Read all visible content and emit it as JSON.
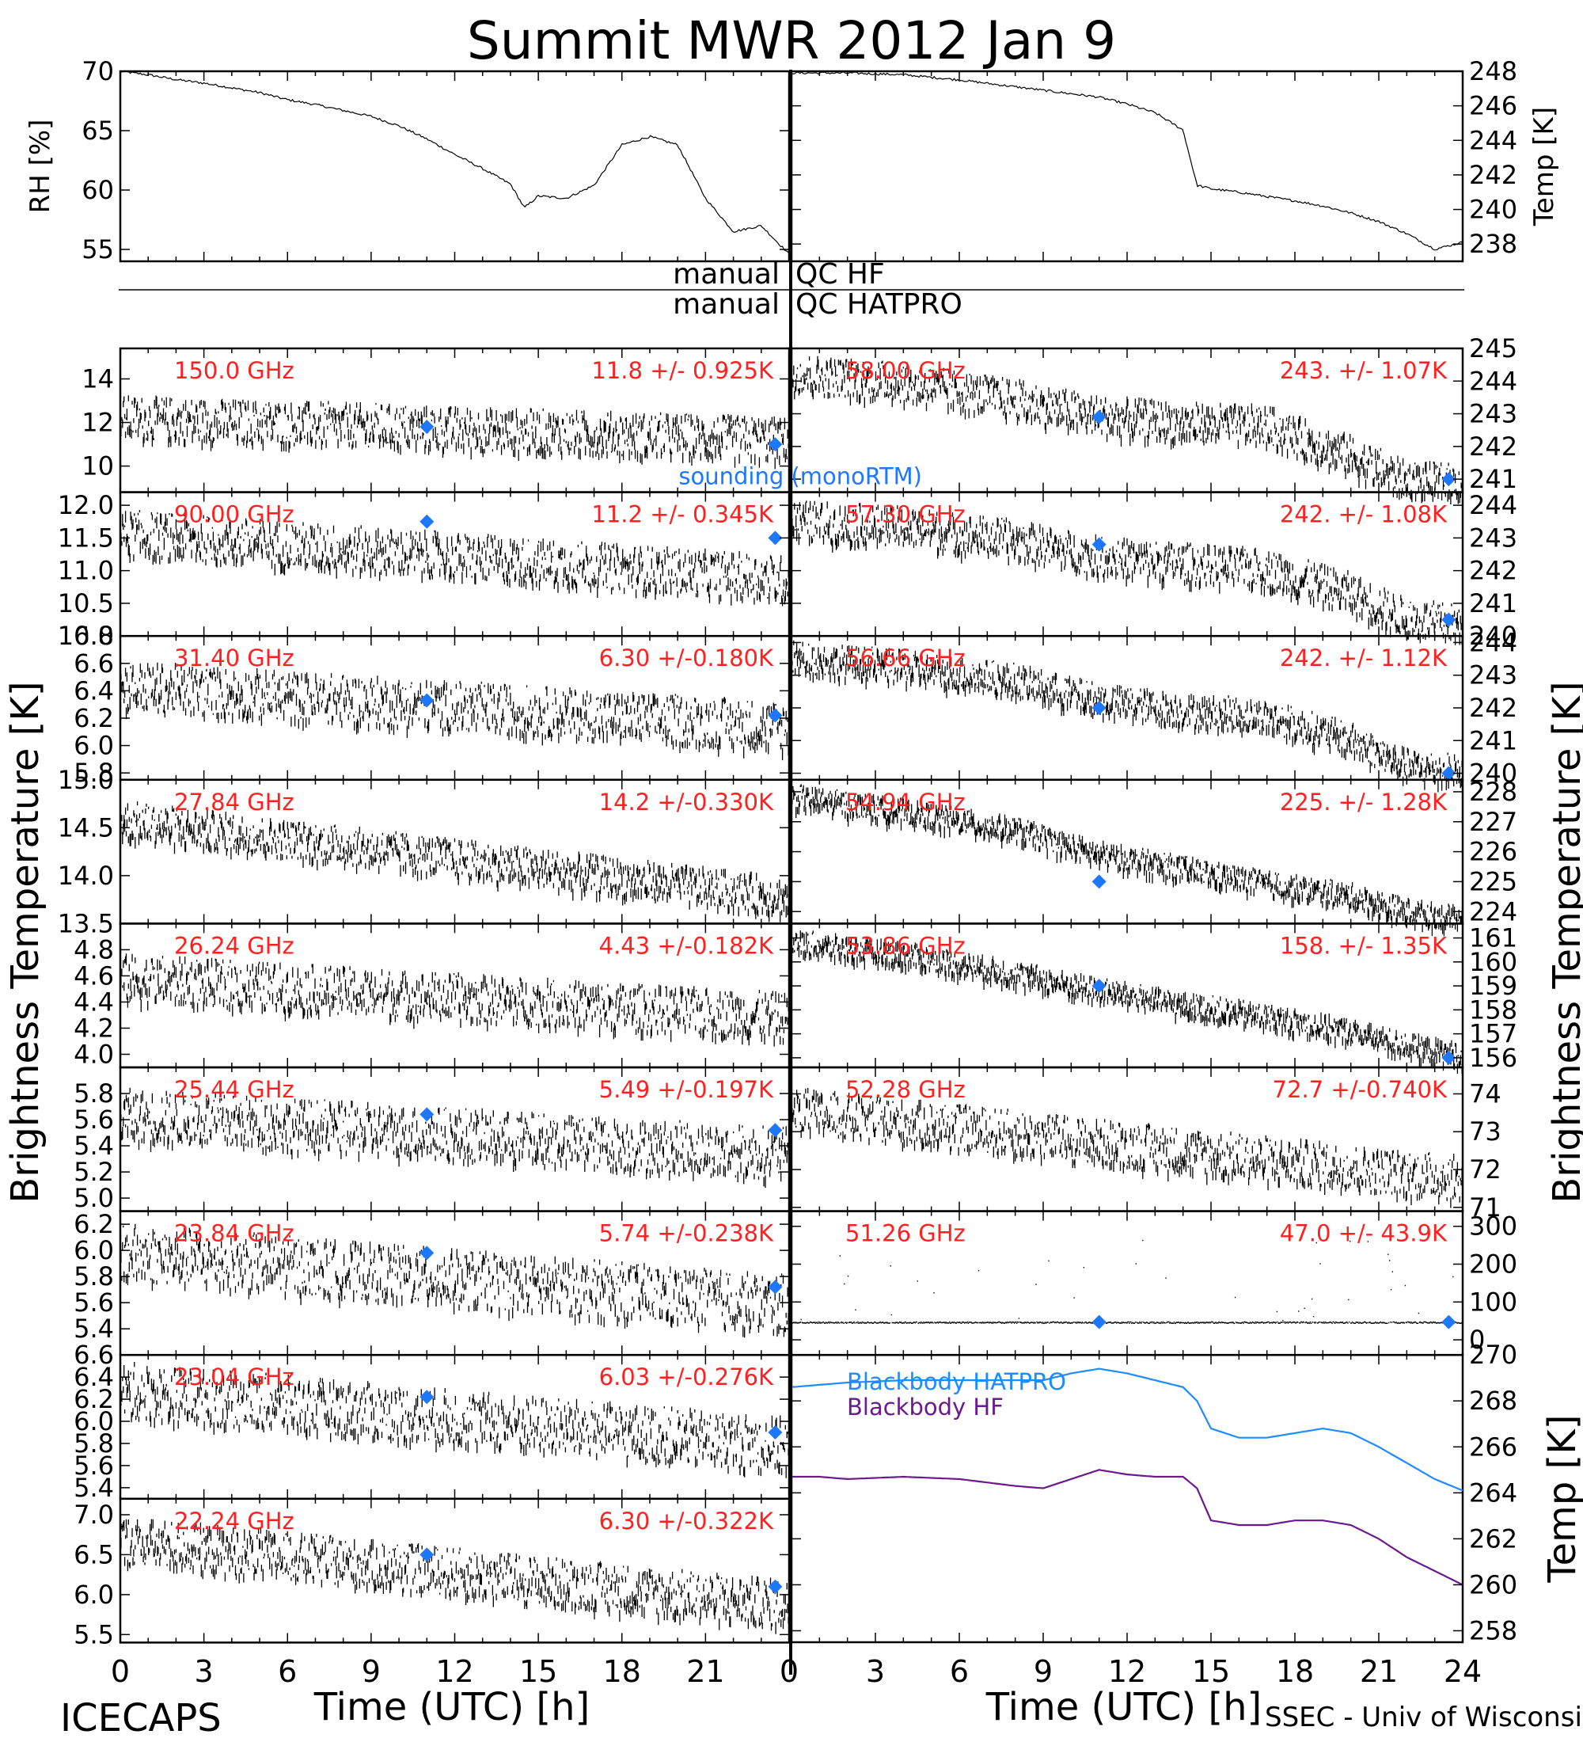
{
  "title": "Summit MWR 2012 Jan  9",
  "footer_left": "ICECAPS",
  "footer_right": "SSEC - Univ of Wisconsin",
  "time_xlabel": "Time (UTC) [h]",
  "time_ticks": [
    "0",
    "3",
    "6",
    "9",
    "12",
    "15",
    "18",
    "21",
    "24"
  ],
  "ylabel_left": "Brightness Temperature [K]",
  "ylabel_right": "Brightness Temperature [K]",
  "qc": {
    "hf_left": "manual",
    "hf_right": "QC HF",
    "hatpro_left": "manual",
    "hatpro_right": "QC HATPRO"
  },
  "legend": {
    "sounding": "sounding (monoRTM)",
    "bb_hatpro": "Blackbody HATPRO",
    "bb_hf": "Blackbody HF"
  },
  "colors": {
    "trace": "#000000",
    "label": "#ff2020",
    "sounding": "#1e78ff",
    "bb_hatpro": "#1e8cff",
    "bb_hf": "#6a1a8c"
  },
  "chart_data": [
    {
      "type": "line",
      "id": "rh",
      "ylabel": "RH [%]",
      "ylim": [
        54,
        70
      ],
      "yticks": [
        "55",
        "60",
        "65",
        "70"
      ],
      "x": [
        0,
        1,
        2,
        3,
        4,
        5,
        6,
        7,
        8,
        9,
        10,
        11,
        12,
        13,
        14,
        14.5,
        15,
        16,
        17,
        18,
        19,
        20,
        21,
        22,
        23,
        24
      ],
      "y": [
        70,
        69.7,
        69.3,
        69,
        68.6,
        68.2,
        67.6,
        67.2,
        66.7,
        66.2,
        65.4,
        64.3,
        63.0,
        61.8,
        60.5,
        58.5,
        59.5,
        59.3,
        60.4,
        63.8,
        64.5,
        63.8,
        59.3,
        56.5,
        57.0,
        54.6
      ]
    },
    {
      "type": "line",
      "id": "temp",
      "ylabel": "Temp [K]",
      "ylim": [
        237,
        248
      ],
      "yticks": [
        "238",
        "240",
        "242",
        "244",
        "246",
        "248"
      ],
      "x": [
        0,
        2,
        4,
        6,
        8,
        10,
        11,
        12,
        13,
        14,
        14.5,
        15,
        16,
        18,
        19,
        20,
        21,
        22,
        23,
        24
      ],
      "y": [
        247.9,
        247.9,
        247.8,
        247.5,
        247.1,
        246.7,
        246.5,
        246.1,
        245.6,
        244.6,
        241.4,
        241.2,
        241.0,
        240.5,
        240.2,
        239.8,
        239.3,
        238.6,
        237.7,
        238.1
      ]
    },
    {
      "type": "scatter",
      "id": "ch150",
      "label": "150.0 GHz",
      "stat": "11.8 +/- 0.925K",
      "ylim": [
        8.8,
        15.4
      ],
      "yticks": [
        "10",
        "12",
        "14"
      ],
      "x": [
        0,
        24
      ],
      "y": [
        12.3,
        11.3
      ],
      "noise": 1.0,
      "sounding": [
        [
          11,
          11.8
        ],
        [
          23.5,
          11.0
        ]
      ]
    },
    {
      "type": "scatter",
      "id": "ch90",
      "label": "90.00 GHz",
      "stat": "11.2 +/- 0.345K",
      "ylim": [
        10.0,
        12.2
      ],
      "yticks": [
        "10.0",
        "10.5",
        "11.0",
        "11.5",
        "12.0"
      ],
      "x": [
        0,
        24
      ],
      "y": [
        11.6,
        10.9
      ],
      "noise": 0.35,
      "sounding": [
        [
          11,
          11.75
        ],
        [
          23.5,
          11.5
        ]
      ]
    },
    {
      "type": "scatter",
      "id": "ch31",
      "label": "31.40 GHz",
      "stat": "6.30 +/-0.180K",
      "ylim": [
        5.75,
        6.8
      ],
      "yticks": [
        "5.8",
        "6.0",
        "6.2",
        "6.4",
        "6.6",
        "6.8"
      ],
      "x": [
        0,
        24
      ],
      "y": [
        6.45,
        6.15
      ],
      "noise": 0.18,
      "sounding": [
        [
          11,
          6.33
        ],
        [
          23.5,
          6.22
        ]
      ]
    },
    {
      "type": "scatter",
      "id": "ch278",
      "label": "27.84 GHz",
      "stat": "14.2 +/-0.330K",
      "ylim": [
        13.5,
        15.0
      ],
      "yticks": [
        "13.5",
        "14.0",
        "14.5",
        "15.0"
      ],
      "x": [
        0,
        24
      ],
      "y": [
        14.6,
        13.8
      ],
      "noise": 0.2,
      "sounding": []
    },
    {
      "type": "scatter",
      "id": "ch262",
      "label": "26.24 GHz",
      "stat": "4.43 +/-0.182K",
      "ylim": [
        3.9,
        5.0
      ],
      "yticks": [
        "4.0",
        "4.2",
        "4.4",
        "4.6",
        "4.8"
      ],
      "x": [
        0,
        24
      ],
      "y": [
        4.6,
        4.3
      ],
      "noise": 0.18,
      "sounding": []
    },
    {
      "type": "scatter",
      "id": "ch254",
      "label": "25.44 GHz",
      "stat": "5.49 +/-0.197K",
      "ylim": [
        4.9,
        6.0
      ],
      "yticks": [
        "5.0",
        "5.2",
        "5.4",
        "5.6",
        "5.8"
      ],
      "x": [
        0,
        24
      ],
      "y": [
        5.65,
        5.35
      ],
      "noise": 0.2,
      "sounding": [
        [
          11,
          5.64
        ],
        [
          23.5,
          5.52
        ]
      ]
    },
    {
      "type": "scatter",
      "id": "ch238",
      "label": "23.84 GHz",
      "stat": "5.74 +/-0.238K",
      "ylim": [
        5.2,
        6.3
      ],
      "yticks": [
        "5.4",
        "5.6",
        "5.8",
        "6.0",
        "6.2"
      ],
      "x": [
        0,
        24
      ],
      "y": [
        6.0,
        5.6
      ],
      "noise": 0.22,
      "sounding": [
        [
          11,
          5.98
        ],
        [
          23.5,
          5.72
        ]
      ]
    },
    {
      "type": "scatter",
      "id": "ch230",
      "label": "23.04 GHz",
      "stat": "6.03 +/-0.276K",
      "ylim": [
        5.3,
        6.6
      ],
      "yticks": [
        "5.4",
        "5.6",
        "5.8",
        "6.0",
        "6.2",
        "6.4",
        "6.6"
      ],
      "x": [
        0,
        24
      ],
      "y": [
        6.3,
        5.8
      ],
      "noise": 0.25,
      "sounding": [
        [
          11,
          6.22
        ],
        [
          23.5,
          5.9
        ]
      ]
    },
    {
      "type": "scatter",
      "id": "ch222",
      "label": "22.24 GHz",
      "stat": "6.30 +/-0.322K",
      "ylim": [
        5.4,
        7.2
      ],
      "yticks": [
        "5.5",
        "6.0",
        "6.5",
        "7.0"
      ],
      "x": [
        0,
        24
      ],
      "y": [
        6.7,
        5.9
      ],
      "noise": 0.3,
      "sounding": [
        [
          11,
          6.5
        ],
        [
          23.5,
          6.1
        ]
      ]
    },
    {
      "type": "scatter",
      "id": "ch58",
      "label": "58.00 GHz",
      "stat": "243. +/- 1.07K",
      "ylim": [
        240.6,
        245
      ],
      "yticks": [
        "241",
        "242",
        "243",
        "244",
        "245"
      ],
      "x": [
        0,
        4,
        8,
        11,
        14,
        17,
        20,
        22,
        24
      ],
      "y": [
        244.3,
        244.0,
        243.5,
        243.0,
        242.8,
        242.7,
        241.8,
        241.0,
        240.9
      ],
      "noise": 0.6,
      "sounding": [
        [
          11,
          242.9
        ],
        [
          23.5,
          241.0
        ]
      ]
    },
    {
      "type": "scatter",
      "id": "ch57",
      "label": "57.30 GHz",
      "stat": "242. +/- 1.08K",
      "ylim": [
        240,
        244.4
      ],
      "yticks": [
        "240",
        "241",
        "242",
        "243",
        "244"
      ],
      "x": [
        0,
        4,
        8,
        11,
        14,
        17,
        20,
        22,
        24
      ],
      "y": [
        243.6,
        243.4,
        243.0,
        242.5,
        242.3,
        242.1,
        241.4,
        240.6,
        240.4
      ],
      "noise": 0.6,
      "sounding": [
        [
          11,
          242.8
        ],
        [
          23.5,
          240.5
        ]
      ]
    },
    {
      "type": "scatter",
      "id": "ch5666",
      "label": "56.66 GHz",
      "stat": "242. +/- 1.12K",
      "ylim": [
        239.8,
        244.2
      ],
      "yticks": [
        "240",
        "241",
        "242",
        "243",
        "244"
      ],
      "x": [
        0,
        4,
        8,
        11,
        14,
        17,
        20,
        22,
        24
      ],
      "y": [
        243.6,
        243.3,
        242.9,
        242.3,
        242.0,
        241.8,
        241.1,
        240.3,
        240.1
      ],
      "noise": 0.5,
      "sounding": [
        [
          11,
          242.0
        ],
        [
          23.5,
          240.0
        ]
      ]
    },
    {
      "type": "scatter",
      "id": "ch5484",
      "label": "54.94 GHz",
      "stat": "225. +/- 1.28K",
      "ylim": [
        223.6,
        228.4
      ],
      "yticks": [
        "224",
        "225",
        "226",
        "227",
        "228"
      ],
      "x": [
        0,
        4,
        8,
        11,
        14,
        17,
        20,
        22,
        24
      ],
      "y": [
        227.9,
        227.4,
        226.8,
        226.0,
        225.5,
        225.0,
        224.6,
        224.1,
        223.8
      ],
      "noise": 0.4,
      "sounding": [
        [
          11,
          225.0
        ]
      ]
    },
    {
      "type": "scatter",
      "id": "ch5386",
      "label": "53.86 GHz",
      "stat": "158. +/- 1.35K",
      "ylim": [
        155.6,
        161.6
      ],
      "yticks": [
        "156",
        "157",
        "158",
        "159",
        "160",
        "161"
      ],
      "x": [
        0,
        4,
        8,
        11,
        14,
        17,
        20,
        22,
        24
      ],
      "y": [
        160.9,
        160.4,
        159.6,
        158.9,
        158.3,
        157.8,
        157.2,
        156.6,
        156.2
      ],
      "noise": 0.5,
      "sounding": [
        [
          11,
          159.0
        ],
        [
          23.5,
          156.0
        ]
      ]
    },
    {
      "type": "scatter",
      "id": "ch5228",
      "label": "52.28 GHz",
      "stat": "72.7 +/-0.740K",
      "ylim": [
        70.9,
        74.7
      ],
      "yticks": [
        "71",
        "72",
        "73",
        "74"
      ],
      "x": [
        0,
        24
      ],
      "y": [
        73.6,
        71.8
      ],
      "noise": 0.6,
      "sounding": []
    },
    {
      "type": "scatter",
      "id": "ch5126",
      "label": "51.26 GHz",
      "stat": "47.0 +/- 43.9K",
      "ylim": [
        -40,
        340
      ],
      "yticks": [
        "0",
        "100",
        "200",
        "300"
      ],
      "x": [
        0,
        24
      ],
      "y": [
        47,
        47
      ],
      "noise": 4,
      "sounding": [
        [
          11,
          47
        ],
        [
          23.5,
          47
        ]
      ]
    },
    {
      "type": "line",
      "id": "blackbody",
      "ylabel": "Temp [K]",
      "ylim": [
        257.5,
        270
      ],
      "yticks": [
        "258",
        "260",
        "262",
        "264",
        "266",
        "268",
        "270"
      ],
      "series": [
        {
          "name": "Blackbody HATPRO",
          "x": [
            0,
            1,
            2,
            4,
            6,
            8,
            9,
            10,
            11,
            12,
            13,
            14,
            14.5,
            15,
            16,
            17,
            18,
            19,
            20,
            21,
            22,
            23,
            24
          ],
          "y": [
            268.6,
            268.7,
            268.8,
            268.9,
            268.9,
            268.9,
            268.9,
            269.2,
            269.4,
            269.2,
            268.9,
            268.6,
            268.0,
            266.8,
            266.4,
            266.4,
            266.6,
            266.8,
            266.6,
            266.0,
            265.3,
            264.6,
            264.1
          ]
        },
        {
          "name": "Blackbody HF",
          "x": [
            0,
            1,
            2,
            4,
            6,
            8,
            9,
            10,
            11,
            12,
            13,
            14,
            14.5,
            15,
            16,
            17,
            18,
            19,
            20,
            21,
            22,
            23,
            24
          ],
          "y": [
            264.7,
            264.7,
            264.6,
            264.7,
            264.6,
            264.3,
            264.2,
            264.6,
            265.0,
            264.8,
            264.7,
            264.7,
            264.2,
            262.8,
            262.6,
            262.6,
            262.8,
            262.8,
            262.6,
            262.0,
            261.2,
            260.6,
            260.0
          ]
        }
      ]
    }
  ]
}
